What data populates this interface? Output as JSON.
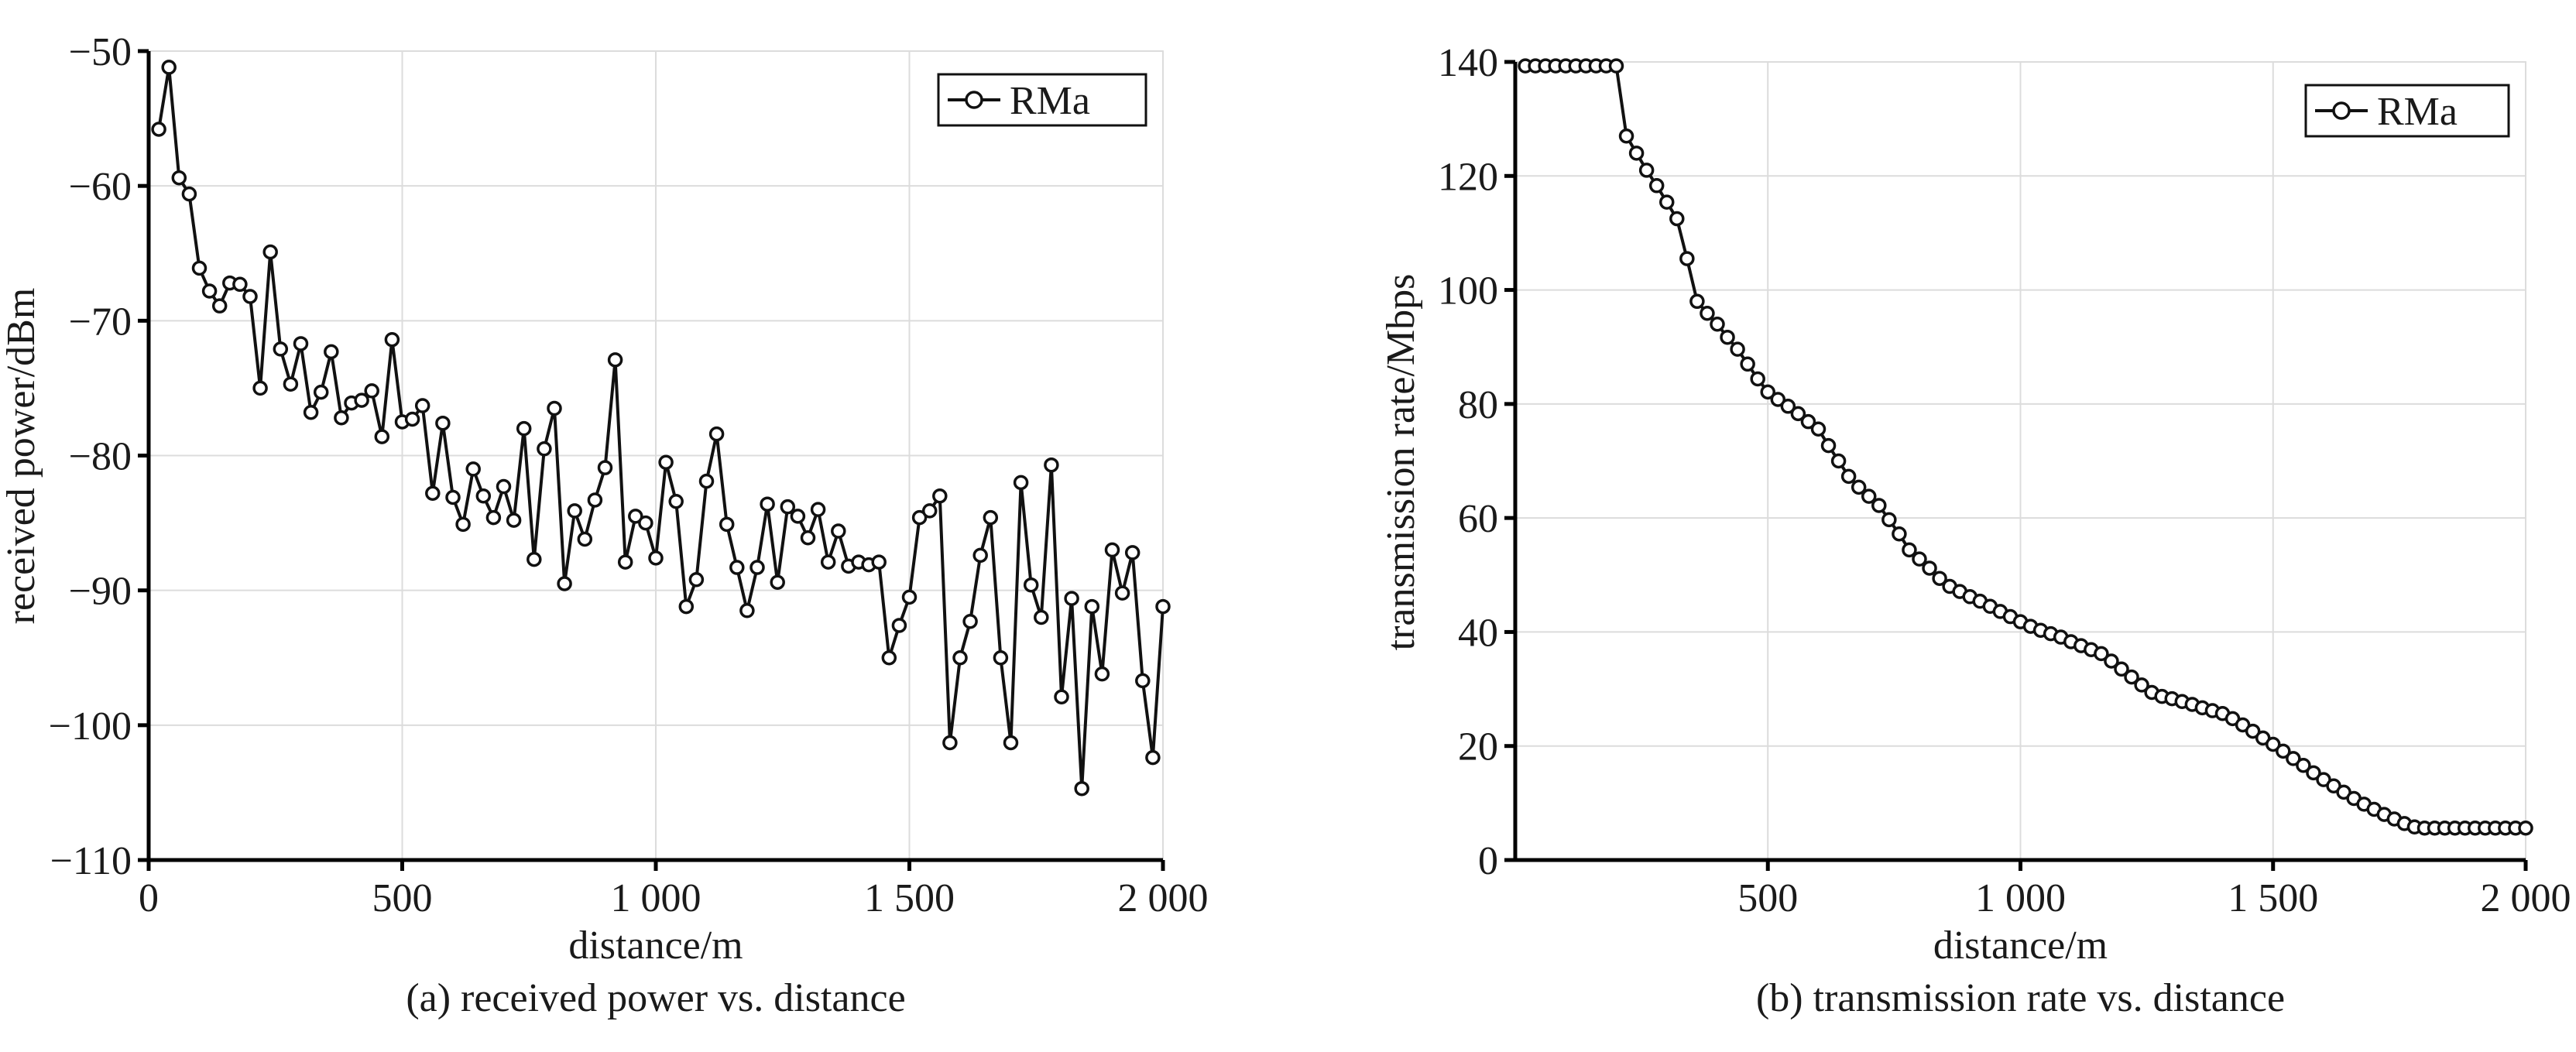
{
  "chart_data": [
    {
      "type": "line",
      "xlabel": "distance/m",
      "ylabel": "received power/dBm",
      "caption": "(a) received power vs. distance",
      "xlim": [
        0,
        2000
      ],
      "ylim": [
        -110,
        -50
      ],
      "x_ticks": [
        0,
        500,
        1000,
        1500,
        2000
      ],
      "x_tick_labels": [
        "0",
        "500",
        "1 000",
        "1 500",
        "2 000"
      ],
      "y_ticks": [
        -50,
        -60,
        -70,
        -80,
        -90,
        -100,
        -110
      ],
      "y_tick_labels": [
        "−50",
        "−60",
        "−70",
        "−80",
        "−90",
        "−100",
        "−110"
      ],
      "grid": true,
      "legend_position": "top-right",
      "series": [
        {
          "name": "RMa",
          "x": [
            20,
            40,
            60,
            80,
            100,
            120,
            140,
            160,
            180,
            200,
            220,
            240,
            260,
            280,
            300,
            320,
            340,
            360,
            380,
            400,
            420,
            440,
            460,
            480,
            500,
            520,
            540,
            560,
            580,
            600,
            620,
            640,
            660,
            680,
            700,
            720,
            740,
            760,
            780,
            800,
            820,
            840,
            860,
            880,
            900,
            920,
            940,
            960,
            980,
            1000,
            1020,
            1040,
            1060,
            1080,
            1100,
            1120,
            1140,
            1160,
            1180,
            1200,
            1220,
            1240,
            1260,
            1280,
            1300,
            1320,
            1340,
            1360,
            1380,
            1400,
            1420,
            1440,
            1460,
            1480,
            1500,
            1520,
            1540,
            1560,
            1580,
            1600,
            1620,
            1640,
            1660,
            1680,
            1700,
            1720,
            1740,
            1760,
            1780,
            1800,
            1820,
            1840,
            1860,
            1880,
            1900,
            1920,
            1940,
            1960,
            1980,
            2000
          ],
          "y": [
            -55.8,
            -51.2,
            -59.4,
            -60.6,
            -66.1,
            -67.8,
            -68.9,
            -67.2,
            -67.3,
            -68.2,
            -75.0,
            -64.9,
            -72.1,
            -74.7,
            -71.7,
            -76.8,
            -75.3,
            -72.3,
            -77.2,
            -76.1,
            -75.9,
            -75.2,
            -78.6,
            -71.4,
            -77.5,
            -77.3,
            -76.3,
            -82.8,
            -77.6,
            -83.1,
            -85.1,
            -81.0,
            -83.0,
            -84.6,
            -82.3,
            -84.8,
            -78.0,
            -87.7,
            -79.5,
            -76.5,
            -89.5,
            -84.1,
            -86.2,
            -83.3,
            -80.9,
            -72.9,
            -87.9,
            -84.5,
            -85.0,
            -87.6,
            -80.5,
            -83.4,
            -91.2,
            -89.2,
            -81.9,
            -78.4,
            -85.1,
            -88.3,
            -91.5,
            -88.3,
            -83.6,
            -89.4,
            -83.8,
            -84.5,
            -86.1,
            -84.0,
            -87.9,
            -85.6,
            -88.2,
            -87.9,
            -88.1,
            -87.9,
            -95.0,
            -92.6,
            -90.5,
            -84.6,
            -84.1,
            -83.0,
            -101.3,
            -95.0,
            -92.3,
            -87.4,
            -84.6,
            -95.0,
            -101.3,
            -82.0,
            -89.6,
            -92.0,
            -80.7,
            -97.9,
            -90.6,
            -104.7,
            -91.2,
            -96.2,
            -87.0,
            -90.2,
            -87.2,
            -96.7,
            -102.4,
            -91.2
          ]
        }
      ]
    },
    {
      "type": "line",
      "xlabel": "distance/m",
      "ylabel": "transmission rate/Mbps",
      "caption": "(b) transmission rate vs. distance",
      "xlim": [
        0,
        2000
      ],
      "ylim": [
        0,
        140
      ],
      "x_ticks": [
        500,
        1000,
        1500,
        2000
      ],
      "x_tick_labels": [
        "500",
        "1 000",
        "1 500",
        "2 000"
      ],
      "y_ticks": [
        0,
        20,
        40,
        60,
        80,
        100,
        120,
        140
      ],
      "y_tick_labels": [
        "0",
        "20",
        "40",
        "60",
        "80",
        "100",
        "120",
        "140"
      ],
      "grid": true,
      "legend_position": "top-right",
      "series": [
        {
          "name": "RMa",
          "x": [
            20,
            40,
            60,
            80,
            100,
            120,
            140,
            160,
            180,
            200,
            220,
            240,
            260,
            280,
            300,
            320,
            340,
            360,
            380,
            400,
            420,
            440,
            460,
            480,
            500,
            520,
            540,
            560,
            580,
            600,
            620,
            640,
            660,
            680,
            700,
            720,
            740,
            760,
            780,
            800,
            820,
            840,
            860,
            880,
            900,
            920,
            940,
            960,
            980,
            1000,
            1020,
            1040,
            1060,
            1080,
            1100,
            1120,
            1140,
            1160,
            1180,
            1200,
            1220,
            1240,
            1260,
            1280,
            1300,
            1320,
            1340,
            1360,
            1380,
            1400,
            1420,
            1440,
            1460,
            1480,
            1500,
            1520,
            1540,
            1560,
            1580,
            1600,
            1620,
            1640,
            1660,
            1680,
            1700,
            1720,
            1740,
            1760,
            1780,
            1800,
            1820,
            1840,
            1860,
            1880,
            1900,
            1920,
            1940,
            1960,
            1980,
            2000
          ],
          "y": [
            139.3,
            139.3,
            139.3,
            139.3,
            139.3,
            139.3,
            139.3,
            139.3,
            139.3,
            139.3,
            127.0,
            124.0,
            121.0,
            118.3,
            115.4,
            112.5,
            105.5,
            98.0,
            95.9,
            94.0,
            91.7,
            89.6,
            87.0,
            84.4,
            82.1,
            80.8,
            79.6,
            78.3,
            76.9,
            75.6,
            72.7,
            70.0,
            67.3,
            65.4,
            63.8,
            62.2,
            59.7,
            57.2,
            54.4,
            52.8,
            51.2,
            49.4,
            48.0,
            47.1,
            46.2,
            45.4,
            44.5,
            43.6,
            42.7,
            41.8,
            41.0,
            40.3,
            39.7,
            39.1,
            38.3,
            37.6,
            36.9,
            36.2,
            34.9,
            33.5,
            32.1,
            30.7,
            29.4,
            28.7,
            28.3,
            27.8,
            27.3,
            26.7,
            26.2,
            25.7,
            24.8,
            23.7,
            22.6,
            21.4,
            20.3,
            19.1,
            17.8,
            16.6,
            15.3,
            14.1,
            13.0,
            11.9,
            10.8,
            9.8,
            8.9,
            8.0,
            7.2,
            6.4,
            5.8,
            5.6,
            5.6,
            5.6,
            5.6,
            5.6,
            5.6,
            5.6,
            5.6,
            5.6,
            5.6,
            5.6
          ]
        }
      ]
    }
  ]
}
